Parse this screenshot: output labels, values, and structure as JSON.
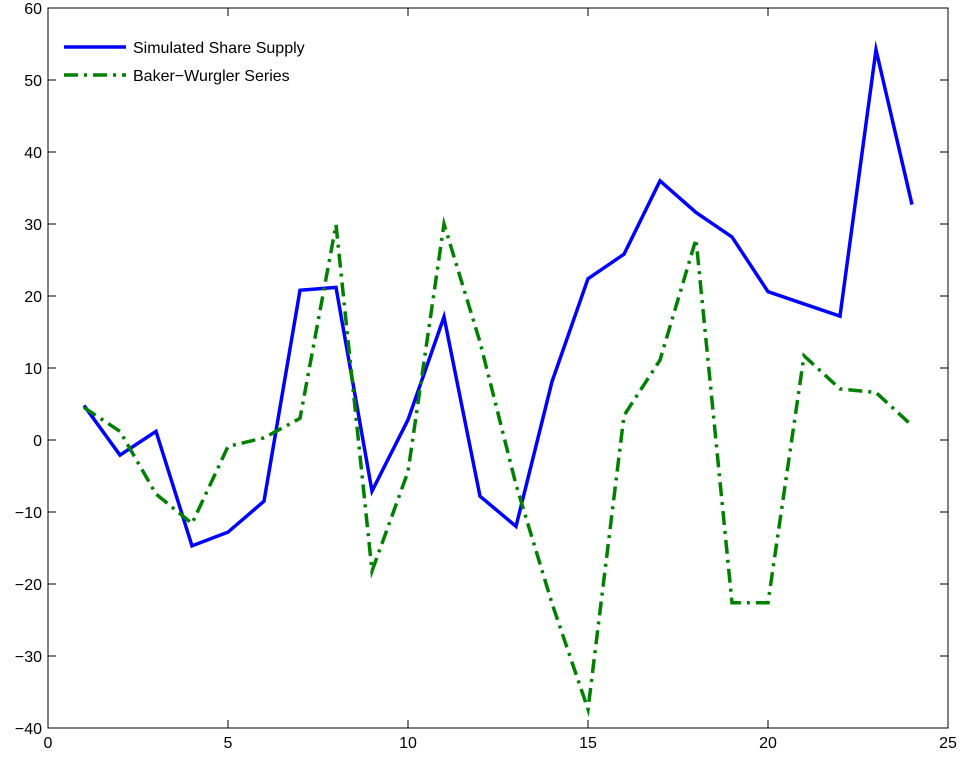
{
  "chart_data": {
    "type": "line",
    "title": "",
    "xlabel": "",
    "ylabel": "",
    "xlim": [
      0,
      25
    ],
    "ylim": [
      -40,
      60
    ],
    "xticks": [
      0,
      5,
      10,
      15,
      20,
      25
    ],
    "yticks": [
      -40,
      -30,
      -20,
      -10,
      0,
      10,
      20,
      30,
      40,
      50,
      60
    ],
    "grid": false,
    "legend_position": "top-left",
    "x": [
      1,
      2,
      3,
      4,
      5,
      6,
      7,
      8,
      9,
      10,
      11,
      12,
      13,
      14,
      15,
      16,
      17,
      18,
      19,
      20,
      21,
      22,
      23,
      24
    ],
    "series": [
      {
        "name": "Simulated Share Supply",
        "color": "#0000ff",
        "line_style": "solid",
        "values": [
          4.8,
          -2.1,
          1.2,
          -14.7,
          -12.8,
          -8.5,
          20.8,
          21.2,
          -7.1,
          2.8,
          17.1,
          -7.8,
          -12.0,
          8.1,
          22.4,
          25.8,
          36.0,
          31.6,
          28.2,
          20.6,
          18.9,
          17.2,
          54.2,
          32.7
        ]
      },
      {
        "name": "Baker−Wurgler Series",
        "color": "#008000",
        "line_style": "dashdot",
        "values": [
          4.5,
          1.2,
          -7.5,
          -11.6,
          -0.9,
          0.3,
          3.0,
          29.9,
          -18.2,
          -4.4,
          30.0,
          13.6,
          -6.2,
          -22.7,
          -37.4,
          3.4,
          11.1,
          27.9,
          -22.6,
          -22.6,
          11.7,
          7.1,
          6.6,
          2.0
        ]
      }
    ]
  }
}
